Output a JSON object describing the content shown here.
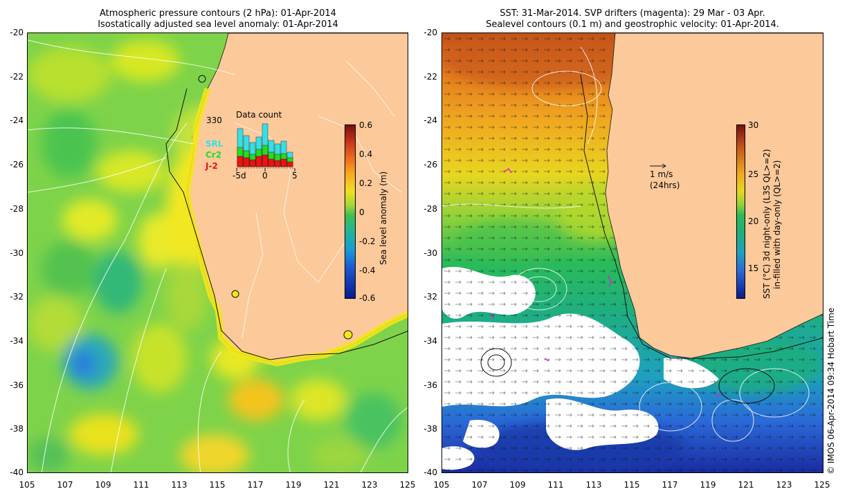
{
  "left": {
    "title_line1": "Atmospheric pressure contours (2 hPa): 01-Apr-2014",
    "title_line2": "Isostatically adjusted sea level anomaly: 01-Apr-2014",
    "colorbar_label": "Sea level anomaly (m)",
    "colorbar_ticks": [
      "0.6",
      "0.4",
      "0.2",
      "0",
      "-0.2",
      "-0.4",
      "-0.6"
    ],
    "inset": {
      "title": "Data count",
      "max_label": "330",
      "legend": [
        "SRL",
        "Cr2",
        "J-2"
      ],
      "legend_colors": [
        "#33e0e8",
        "#22dd22",
        "#ee1111"
      ],
      "xticks": [
        "-5d",
        "0",
        "5"
      ]
    }
  },
  "right": {
    "title_line1": "SST: 31-Mar-2014. SVP drifters (magenta): 29 Mar - 03 Apr.",
    "title_line2": "Sealevel contours (0.1 m) and geostrophic velocity: 01-Apr-2014.",
    "colorbar_label_line1": "SST (°C) 3d night-only (L3S QL>=2)",
    "colorbar_label_line2": "in-filled with day-only (QL>=2)",
    "colorbar_ticks": [
      "30",
      "25",
      "20",
      "15"
    ],
    "scale_arrow_label": "1 m/s",
    "scale_arrow_sub": "(24hrs)"
  },
  "axes": {
    "yticks": [
      "-20",
      "-22",
      "-24",
      "-26",
      "-28",
      "-30",
      "-32",
      "-34",
      "-36",
      "-38",
      "-40"
    ],
    "xticks": [
      "105",
      "107",
      "109",
      "111",
      "113",
      "115",
      "117",
      "119",
      "121",
      "123",
      "125"
    ]
  },
  "credit": "© IMOS 06-Apr-2014 09:34 Hobart Time",
  "colors": {
    "land": "#fcc99a",
    "grid_line": "#ffffff"
  }
}
